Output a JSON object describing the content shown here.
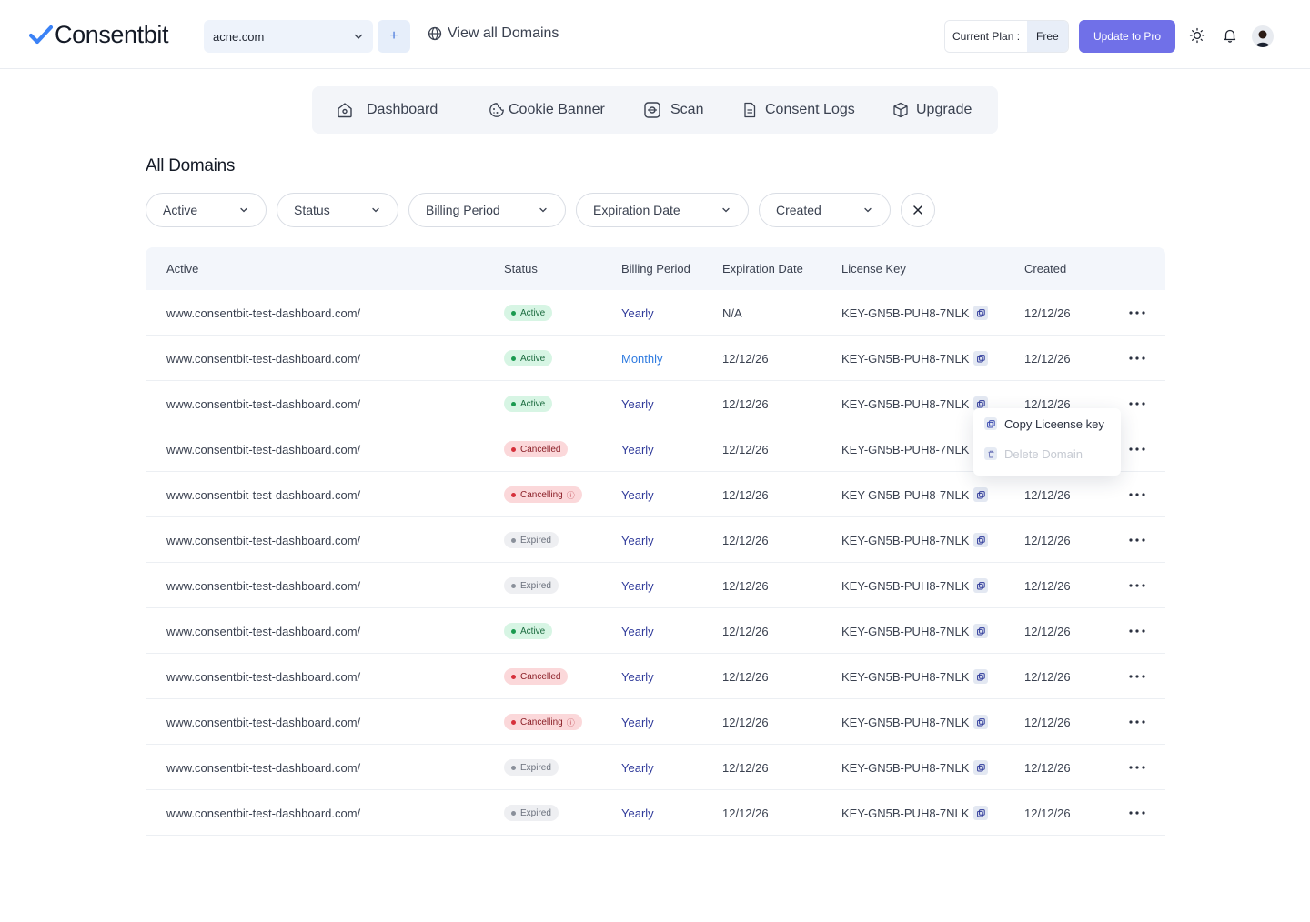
{
  "header": {
    "logo_text": "Consentbit",
    "domain_select_value": "acne.com",
    "add_label": "+",
    "view_all_label": "View all Domains",
    "plan_label": "Current Plan :",
    "plan_value": "Free",
    "upgrade_label": "Update to Pro",
    "icons": [
      "sun-icon",
      "bell-icon",
      "avatar"
    ],
    "accent_color": "#7070e8"
  },
  "nav": {
    "items": [
      {
        "label": "Dashboard",
        "icon": "home-icon"
      },
      {
        "label": "Cookie Banner",
        "icon": "cookie-icon"
      },
      {
        "label": "Scan",
        "icon": "scan-icon"
      },
      {
        "label": "Consent Logs",
        "icon": "document-icon"
      },
      {
        "label": "Upgrade",
        "icon": "box-icon"
      }
    ]
  },
  "page_title": "All Domains",
  "filters": [
    {
      "label": "Active"
    },
    {
      "label": "Status"
    },
    {
      "label": "Billing Period"
    },
    {
      "label": "Expiration Date"
    },
    {
      "label": "Created"
    }
  ],
  "table": {
    "columns": [
      "Active",
      "Status",
      "Billing Period",
      "Expiration Date",
      "License Key",
      "Created"
    ],
    "rows": [
      {
        "domain": "www.consentbit-test-dashboard.com/",
        "status": "Active",
        "status_type": "active",
        "billing": "Yearly",
        "expiration": "N/A",
        "key": "KEY-GN5B-PUH8-7NLK",
        "created": "12/12/26"
      },
      {
        "domain": "www.consentbit-test-dashboard.com/",
        "status": "Active",
        "status_type": "active",
        "billing": "Monthly",
        "expiration": "12/12/26",
        "key": "KEY-GN5B-PUH8-7NLK",
        "created": "12/12/26"
      },
      {
        "domain": "www.consentbit-test-dashboard.com/",
        "status": "Active",
        "status_type": "active",
        "billing": "Yearly",
        "expiration": "12/12/26",
        "key": "KEY-GN5B-PUH8-7NLK",
        "created": "12/12/26"
      },
      {
        "domain": "www.consentbit-test-dashboard.com/",
        "status": "Cancelled",
        "status_type": "cancelled",
        "billing": "Yearly",
        "expiration": "12/12/26",
        "key": "KEY-GN5B-PUH8-7NLK",
        "created": "12/12/26"
      },
      {
        "domain": "www.consentbit-test-dashboard.com/",
        "status": "Cancelling",
        "status_type": "cancelling",
        "billing": "Yearly",
        "expiration": "12/12/26",
        "key": "KEY-GN5B-PUH8-7NLK",
        "created": "12/12/26"
      },
      {
        "domain": "www.consentbit-test-dashboard.com/",
        "status": "Expired",
        "status_type": "expired",
        "billing": "Yearly",
        "expiration": "12/12/26",
        "key": "KEY-GN5B-PUH8-7NLK",
        "created": "12/12/26"
      },
      {
        "domain": "www.consentbit-test-dashboard.com/",
        "status": "Expired",
        "status_type": "expired",
        "billing": "Yearly",
        "expiration": "12/12/26",
        "key": "KEY-GN5B-PUH8-7NLK",
        "created": "12/12/26"
      },
      {
        "domain": "www.consentbit-test-dashboard.com/",
        "status": "Active",
        "status_type": "active",
        "billing": "Yearly",
        "expiration": "12/12/26",
        "key": "KEY-GN5B-PUH8-7NLK",
        "created": "12/12/26"
      },
      {
        "domain": "www.consentbit-test-dashboard.com/",
        "status": "Cancelled",
        "status_type": "cancelled",
        "billing": "Yearly",
        "expiration": "12/12/26",
        "key": "KEY-GN5B-PUH8-7NLK",
        "created": "12/12/26"
      },
      {
        "domain": "www.consentbit-test-dashboard.com/",
        "status": "Cancelling",
        "status_type": "cancelling",
        "billing": "Yearly",
        "expiration": "12/12/26",
        "key": "KEY-GN5B-PUH8-7NLK",
        "created": "12/12/26"
      },
      {
        "domain": "www.consentbit-test-dashboard.com/",
        "status": "Expired",
        "status_type": "expired",
        "billing": "Yearly",
        "expiration": "12/12/26",
        "key": "KEY-GN5B-PUH8-7NLK",
        "created": "12/12/26"
      },
      {
        "domain": "www.consentbit-test-dashboard.com/",
        "status": "Expired",
        "status_type": "expired",
        "billing": "Yearly",
        "expiration": "12/12/26",
        "key": "KEY-GN5B-PUH8-7NLK",
        "created": "12/12/26"
      }
    ]
  },
  "row_menu": {
    "copy_label": "Copy Liceense key",
    "delete_label": "Delete Domain"
  }
}
